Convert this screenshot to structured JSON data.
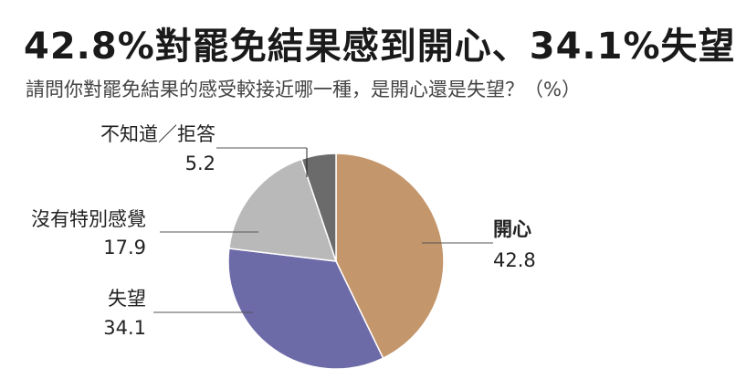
{
  "title": "42.8%對罷免結果感到開心、34.1%失望",
  "subtitle": "請問你對罷免結果的感受較接近哪一種，是開心還是失望？（%）",
  "chart_data": {
    "type": "pie",
    "slices": [
      {
        "label": "開心",
        "value": 42.8,
        "color": "#c4966b"
      },
      {
        "label": "失望",
        "value": 34.1,
        "color": "#6d6aa8"
      },
      {
        "label": "沒有特別感覺",
        "value": 17.9,
        "color": "#b9b9b9"
      },
      {
        "label": "不知道／拒答",
        "value": 5.2,
        "color": "#6b6b6b"
      }
    ]
  }
}
